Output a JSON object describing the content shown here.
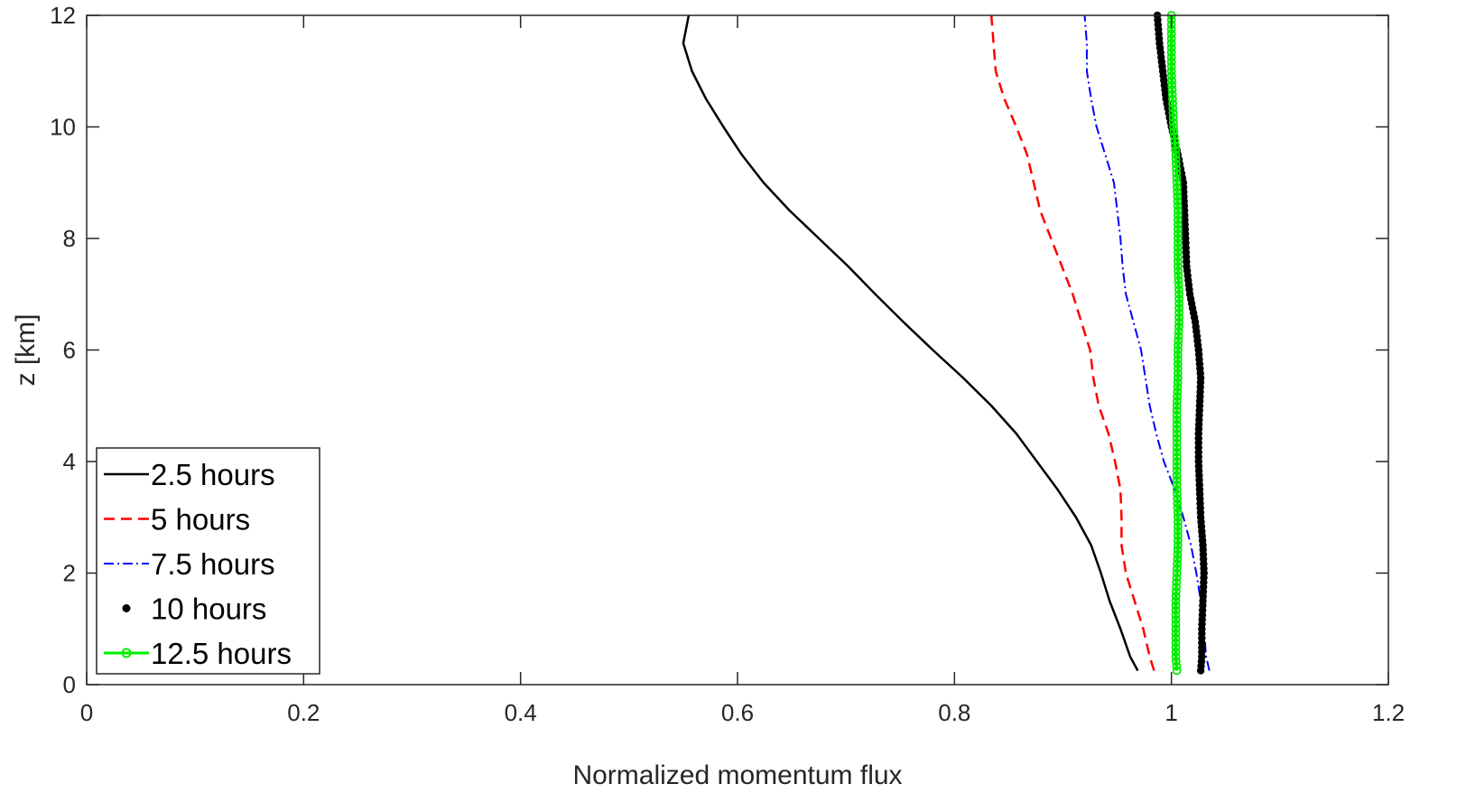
{
  "chart_data": {
    "type": "line",
    "title": "",
    "xlabel": "Normalized momentum flux",
    "ylabel": "z [km]",
    "xlim": [
      0,
      1.2
    ],
    "ylim": [
      0,
      12
    ],
    "xticks": [
      0,
      0.2,
      0.4,
      0.6,
      0.8,
      1,
      1.2
    ],
    "xtick_labels": [
      "0",
      "0.2",
      "0.4",
      "0.6",
      "0.8",
      "1",
      "1.2"
    ],
    "yticks": [
      0,
      2,
      4,
      6,
      8,
      10,
      12
    ],
    "ytick_labels": [
      "0",
      "2",
      "4",
      "6",
      "8",
      "10",
      "12"
    ],
    "grid": false,
    "legend_position": "bottom-left",
    "series": [
      {
        "name": "2.5 hours",
        "color": "#000000",
        "style": "solid",
        "points": [
          [
            0.969,
            0.25
          ],
          [
            0.962,
            0.5
          ],
          [
            0.953,
            1.0
          ],
          [
            0.943,
            1.5
          ],
          [
            0.935,
            2.0
          ],
          [
            0.926,
            2.5
          ],
          [
            0.912,
            3.0
          ],
          [
            0.895,
            3.5
          ],
          [
            0.876,
            4.0
          ],
          [
            0.857,
            4.5
          ],
          [
            0.834,
            5.0
          ],
          [
            0.808,
            5.5
          ],
          [
            0.78,
            6.0
          ],
          [
            0.753,
            6.5
          ],
          [
            0.727,
            7.0
          ],
          [
            0.702,
            7.5
          ],
          [
            0.675,
            8.0
          ],
          [
            0.648,
            8.5
          ],
          [
            0.624,
            9.0
          ],
          [
            0.604,
            9.5
          ],
          [
            0.587,
            10.0
          ],
          [
            0.571,
            10.5
          ],
          [
            0.558,
            11.0
          ],
          [
            0.55,
            11.5
          ],
          [
            0.555,
            12.0
          ]
        ]
      },
      {
        "name": "5 hours",
        "color": "#ff0000",
        "style": "dashed",
        "points": [
          [
            0.984,
            0.25
          ],
          [
            0.98,
            0.5
          ],
          [
            0.974,
            1.0
          ],
          [
            0.966,
            1.5
          ],
          [
            0.958,
            2.0
          ],
          [
            0.954,
            2.5
          ],
          [
            0.954,
            3.0
          ],
          [
            0.953,
            3.5
          ],
          [
            0.948,
            4.0
          ],
          [
            0.942,
            4.5
          ],
          [
            0.933,
            5.0
          ],
          [
            0.928,
            5.5
          ],
          [
            0.925,
            6.0
          ],
          [
            0.917,
            6.5
          ],
          [
            0.909,
            7.0
          ],
          [
            0.899,
            7.5
          ],
          [
            0.889,
            8.0
          ],
          [
            0.879,
            8.5
          ],
          [
            0.873,
            9.0
          ],
          [
            0.867,
            9.5
          ],
          [
            0.857,
            10.0
          ],
          [
            0.846,
            10.5
          ],
          [
            0.838,
            11.0
          ],
          [
            0.836,
            11.5
          ],
          [
            0.834,
            12.0
          ]
        ]
      },
      {
        "name": "7.5 hours",
        "color": "#0000ff",
        "style": "dashdot",
        "points": [
          [
            1.035,
            0.25
          ],
          [
            1.032,
            0.5
          ],
          [
            1.03,
            1.0
          ],
          [
            1.027,
            1.5
          ],
          [
            1.023,
            2.0
          ],
          [
            1.018,
            2.5
          ],
          [
            1.011,
            3.0
          ],
          [
            1.003,
            3.5
          ],
          [
            0.993,
            4.0
          ],
          [
            0.986,
            4.5
          ],
          [
            0.98,
            5.0
          ],
          [
            0.976,
            5.5
          ],
          [
            0.972,
            6.0
          ],
          [
            0.965,
            6.5
          ],
          [
            0.958,
            7.0
          ],
          [
            0.955,
            7.5
          ],
          [
            0.953,
            8.0
          ],
          [
            0.95,
            8.5
          ],
          [
            0.947,
            9.0
          ],
          [
            0.939,
            9.5
          ],
          [
            0.931,
            10.0
          ],
          [
            0.926,
            10.5
          ],
          [
            0.922,
            11.0
          ],
          [
            0.922,
            11.5
          ],
          [
            0.92,
            12.0
          ]
        ]
      },
      {
        "name": "10 hours",
        "color": "#000000",
        "style": "dots",
        "points": [
          [
            1.027,
            0.25
          ],
          [
            1.028,
            0.5
          ],
          [
            1.028,
            1.0
          ],
          [
            1.029,
            1.5
          ],
          [
            1.03,
            2.0
          ],
          [
            1.029,
            2.5
          ],
          [
            1.027,
            3.0
          ],
          [
            1.026,
            3.5
          ],
          [
            1.025,
            4.0
          ],
          [
            1.025,
            4.5
          ],
          [
            1.026,
            5.0
          ],
          [
            1.027,
            5.5
          ],
          [
            1.025,
            6.0
          ],
          [
            1.022,
            6.5
          ],
          [
            1.017,
            7.0
          ],
          [
            1.014,
            7.5
          ],
          [
            1.013,
            8.0
          ],
          [
            1.012,
            8.5
          ],
          [
            1.011,
            9.0
          ],
          [
            1.006,
            9.5
          ],
          [
            1.0,
            10.0
          ],
          [
            0.995,
            10.5
          ],
          [
            0.992,
            11.0
          ],
          [
            0.989,
            11.5
          ],
          [
            0.987,
            12.0
          ]
        ]
      },
      {
        "name": "12.5 hours",
        "color": "#00ee00",
        "style": "solid-circles",
        "points": [
          [
            1.005,
            0.25
          ],
          [
            1.004,
            0.5
          ],
          [
            1.004,
            1.0
          ],
          [
            1.004,
            1.5
          ],
          [
            1.005,
            2.0
          ],
          [
            1.006,
            2.5
          ],
          [
            1.006,
            3.0
          ],
          [
            1.005,
            3.5
          ],
          [
            1.005,
            4.0
          ],
          [
            1.005,
            4.5
          ],
          [
            1.005,
            5.0
          ],
          [
            1.006,
            5.5
          ],
          [
            1.006,
            6.0
          ],
          [
            1.007,
            6.5
          ],
          [
            1.007,
            7.0
          ],
          [
            1.006,
            7.5
          ],
          [
            1.006,
            8.0
          ],
          [
            1.006,
            8.5
          ],
          [
            1.005,
            9.0
          ],
          [
            1.004,
            9.5
          ],
          [
            1.002,
            10.0
          ],
          [
            1.001,
            10.5
          ],
          [
            1.0,
            11.0
          ],
          [
            1.0,
            11.5
          ],
          [
            1.0,
            12.0
          ]
        ]
      }
    ]
  }
}
